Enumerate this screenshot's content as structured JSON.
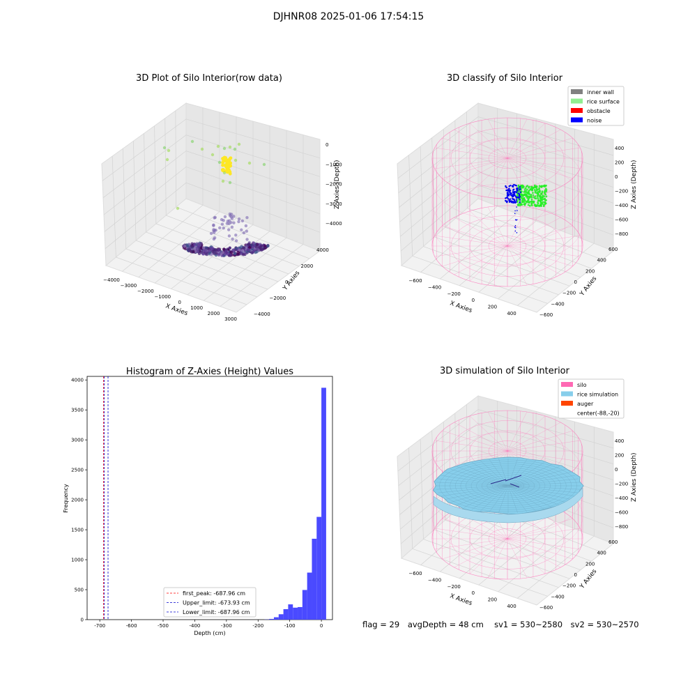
{
  "figure": {
    "suptitle": "DJHNR08 2025-01-06 17:54:15",
    "stats": {
      "flag": "flag = 29",
      "avg_depth": "avgDepth = 48 cm",
      "sv1": "sv1 = 530~2580",
      "sv2": "sv2 = 530~2570"
    }
  },
  "colors": {
    "inner_wall": "#808080",
    "rice_surface": "#90ee90",
    "obstacle": "#ff0000",
    "noise": "#0000ff",
    "silo": "#ff69b4",
    "rice_simulation": "#87ceeb",
    "auger": "#ff4500",
    "hist_bar": "#4a4aff",
    "hist_first_peak": "#ff0000",
    "hist_limits": "#0000cc"
  },
  "chart_data": [
    {
      "type": "scatter3d",
      "title": "3D Plot of Silo Interior(row data)",
      "xlabel": "X Axies",
      "ylabel": "Y Axies",
      "zlabel": "Z Axies (Depth)",
      "x_ticks": [
        "−4000",
        "−3000",
        "−2000",
        "−1000",
        "0",
        "1000",
        "2000",
        "3000"
      ],
      "y_ticks": [
        "4000",
        "2000",
        "0",
        "−2000",
        "−4000"
      ],
      "z_ticks": [
        "0",
        "−1000",
        "−2000",
        "−3000",
        "−4000"
      ],
      "xlim": [
        -4500,
        3200
      ],
      "ylim": [
        -4500,
        4500
      ],
      "zlim": [
        -4500,
        200
      ],
      "colormap": "viridis (by depth)",
      "clusters": [
        {
          "name": "floor ring",
          "center": [
            0,
            0,
            -4300
          ],
          "approx_points": 400
        },
        {
          "name": "dense column",
          "center": [
            0,
            0,
            -1000
          ],
          "approx_points": 60
        },
        {
          "name": "scattered upper points",
          "center": [
            -500,
            500,
            -500
          ],
          "approx_points": 25
        }
      ]
    },
    {
      "type": "scatter3d",
      "title": "3D classify of Silo Interior",
      "xlabel": "X Axies",
      "ylabel": "Y Axies",
      "zlabel": "Z Axies (Depth)",
      "x_ticks": [
        "−600",
        "−400",
        "−200",
        "0",
        "200",
        "400"
      ],
      "y_ticks": [
        "600",
        "400",
        "200",
        "0",
        "−200",
        "−400",
        "−600"
      ],
      "z_ticks": [
        "400",
        "200",
        "0",
        "−200",
        "−400",
        "−600",
        "−800"
      ],
      "xlim": [
        -700,
        500
      ],
      "ylim": [
        -700,
        700
      ],
      "zlim": [
        -900,
        450
      ],
      "legend": {
        "placement": "upper-right",
        "entries": [
          {
            "label": "inner wall",
            "color": "#808080"
          },
          {
            "label": "rice surface",
            "color": "#90ee90"
          },
          {
            "label": "obstacle",
            "color": "#ff0000"
          },
          {
            "label": "noise",
            "color": "#0000ff"
          }
        ]
      }
    },
    {
      "type": "histogram",
      "title": "Histogram of Z-Axies (Height) Values",
      "xlabel": "Depth (cm)",
      "ylabel": "Frequency",
      "xlim": [
        -740,
        35
      ],
      "ylim": [
        0,
        4060
      ],
      "x_ticks": [
        -700,
        -600,
        -500,
        -400,
        -300,
        -200,
        -100,
        0
      ],
      "y_ticks": [
        0,
        500,
        1000,
        1500,
        2000,
        2500,
        3000,
        3500,
        4000
      ],
      "bins": [
        {
          "x0": -180,
          "x1": -165,
          "count": 3
        },
        {
          "x0": -165,
          "x1": -150,
          "count": 12
        },
        {
          "x0": -150,
          "x1": -135,
          "count": 40
        },
        {
          "x0": -135,
          "x1": -120,
          "count": 90
        },
        {
          "x0": -120,
          "x1": -105,
          "count": 175
        },
        {
          "x0": -105,
          "x1": -90,
          "count": 255
        },
        {
          "x0": -90,
          "x1": -75,
          "count": 200
        },
        {
          "x0": -75,
          "x1": -60,
          "count": 210
        },
        {
          "x0": -60,
          "x1": -45,
          "count": 495
        },
        {
          "x0": -45,
          "x1": -30,
          "count": 785
        },
        {
          "x0": -30,
          "x1": -15,
          "count": 1350
        },
        {
          "x0": -15,
          "x1": 0,
          "count": 1715
        },
        {
          "x0": 0,
          "x1": 15,
          "count": 3870
        }
      ],
      "vlines": [
        {
          "label": "first_peak: -687.96 cm",
          "x": -687.96,
          "color": "#ff0000"
        },
        {
          "label": "Upper_limit: -673.93 cm",
          "x": -673.93,
          "color": "#0000cc"
        },
        {
          "label": "Lower_limit: -687.96 cm",
          "x": -687.96,
          "color": "#0000cc"
        }
      ],
      "legend_placement": "lower-center"
    },
    {
      "type": "surface3d",
      "title": "3D simulation of Silo Interior",
      "xlabel": "X Axies",
      "ylabel": "Y Axies",
      "zlabel": "Z Axies (Depth)",
      "x_ticks": [
        "−600",
        "−400",
        "−200",
        "0",
        "200",
        "400"
      ],
      "y_ticks": [
        "600",
        "400",
        "200",
        "0",
        "−200",
        "−400",
        "−600"
      ],
      "z_ticks": [
        "400",
        "200",
        "0",
        "−200",
        "−400",
        "−600",
        "−800"
      ],
      "xlim": [
        -700,
        500
      ],
      "ylim": [
        -700,
        700
      ],
      "zlim": [
        -900,
        450
      ],
      "legend": {
        "placement": "upper-right",
        "entries": [
          {
            "label": "silo",
            "color": "#ff69b4"
          },
          {
            "label": "rice simulation",
            "color": "#87ceeb"
          },
          {
            "label": "auger",
            "color": "#ff4500"
          },
          {
            "label": "center(-88,-20)",
            "color": ""
          }
        ]
      }
    }
  ]
}
